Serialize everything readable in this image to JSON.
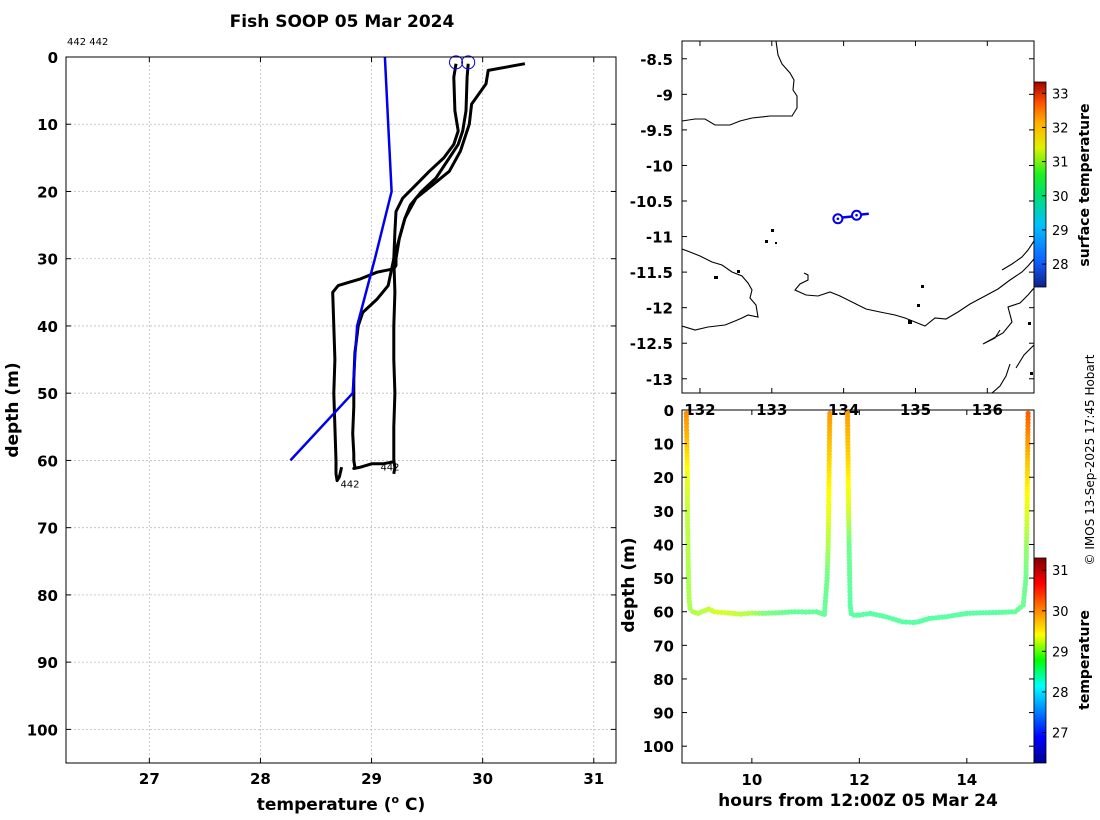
{
  "title": "Fish SOOP 05 Mar 2024",
  "credit": "© IMOS 13-Sep-2025 17:45 Hobart",
  "colors": {
    "profile": "#000000",
    "climatology": "#0000ee",
    "track": "#0000ee"
  },
  "chart_data": [
    {
      "type": "line",
      "name": "profile-panel",
      "xlabel": "temperature (o C)",
      "xlabel_main": "temperature (",
      "xlabel_sup": "o",
      "xlabel_end": " C)",
      "ylabel": "depth (m)",
      "xlim": [
        26.25,
        31.2
      ],
      "ylim": [
        0,
        105
      ],
      "y_reversed": true,
      "xticks": [
        27,
        28,
        29,
        30,
        31
      ],
      "yticks": [
        0,
        10,
        20,
        30,
        40,
        50,
        60,
        70,
        80,
        90,
        100
      ],
      "grid": true,
      "corner_label": "442 442",
      "annotations": [
        {
          "text": "442",
          "x": 28.72,
          "y": 64.0
        },
        {
          "text": "442",
          "x": 29.08,
          "y": 61.5
        }
      ],
      "surface_markers": [
        {
          "x": 29.76,
          "y": 0.8
        },
        {
          "x": 29.87,
          "y": 0.8
        }
      ],
      "series": [
        {
          "name": "profile-1",
          "color": "#000000",
          "x": [
            29.76,
            29.74,
            29.75,
            29.78,
            29.74,
            29.65,
            29.52,
            29.4,
            29.28,
            29.22,
            29.21,
            29.2,
            29.21,
            29.2,
            29.2,
            29.21,
            29.2,
            29.2,
            29.2,
            29.21,
            29.2
          ],
          "y": [
            1,
            3,
            8,
            11,
            13,
            15,
            17,
            19,
            21,
            23,
            26,
            30,
            35,
            40,
            45,
            50,
            55,
            59,
            60,
            61,
            62
          ]
        },
        {
          "name": "profile-2",
          "color": "#000000",
          "x": [
            29.87,
            29.86,
            29.85,
            29.82,
            29.78,
            29.7,
            29.58,
            29.45,
            29.35,
            29.3,
            29.25,
            29.2,
            29.15,
            29.05,
            28.92,
            28.88,
            28.85,
            28.84,
            28.84,
            28.83,
            28.84,
            28.84,
            28.85,
            28.84,
            28.9,
            29.0,
            29.1,
            29.2
          ],
          "y": [
            1,
            3,
            8,
            11,
            13,
            15,
            18,
            20,
            22,
            24,
            27,
            30,
            34,
            36,
            38,
            40,
            44,
            48,
            52,
            56,
            59,
            60,
            61,
            61.2,
            61,
            60.5,
            60.5,
            60.2
          ]
        },
        {
          "name": "profile-3",
          "color": "#000000",
          "x": [
            30.38,
            30.05,
            30.03,
            29.9,
            29.88,
            29.8,
            29.7,
            29.55,
            29.4,
            29.3,
            29.25,
            29.22,
            29.22,
            29.2,
            29.05,
            28.9,
            28.8,
            28.7,
            28.65,
            28.66,
            28.67,
            28.66,
            28.67,
            28.68,
            28.68,
            28.69,
            28.71,
            28.73
          ],
          "y": [
            1,
            2,
            4,
            7,
            10,
            14,
            17,
            19,
            21,
            24,
            27,
            30,
            31,
            31.5,
            32,
            33,
            33.5,
            34,
            35,
            40,
            45,
            50,
            55,
            60,
            62,
            63,
            62.5,
            61
          ]
        },
        {
          "name": "climatology",
          "color": "#0000ee",
          "x": [
            29.12,
            29.15,
            29.18,
            29.03,
            28.87,
            28.85,
            28.83,
            28.27
          ],
          "y": [
            0,
            10,
            20,
            30,
            40,
            45,
            50,
            60
          ]
        }
      ]
    },
    {
      "type": "line",
      "name": "map-panel",
      "xlim": [
        131.75,
        136.65
      ],
      "ylim": [
        -13.2,
        -8.25
      ],
      "xticks": [
        132,
        133,
        134,
        135,
        136
      ],
      "xtick_labels": [
        "132",
        "133",
        "134",
        "135",
        "136"
      ],
      "yticks": [
        -8.5,
        -9,
        -9.5,
        -10,
        -10.5,
        -11,
        -11.5,
        -12,
        -12.5,
        -13
      ],
      "ytick_labels": [
        "-8.5",
        "-9",
        "-9.5",
        "-10",
        "-10.5",
        "-11",
        "-11.5",
        "-12",
        "-12.5",
        "-13"
      ],
      "track": {
        "lon": [
          133.92,
          134.0,
          134.1,
          134.18,
          134.25,
          134.35
        ],
        "lat": [
          -10.75,
          -10.73,
          -10.72,
          -10.7,
          -10.69,
          -10.68
        ]
      },
      "drop_markers": [
        {
          "lon": 133.92,
          "lat": -10.75
        },
        {
          "lon": 134.18,
          "lat": -10.7
        }
      ],
      "colorbar": {
        "label": "surface temperature",
        "range": [
          27.33,
          33.33
        ],
        "ticks": [
          28,
          29,
          30,
          31,
          32,
          33
        ],
        "tick_labels": [
          "28",
          "29",
          "30",
          "31",
          "32",
          "33"
        ]
      }
    },
    {
      "type": "scatter",
      "name": "time-depth-panel",
      "xlabel": "hours from 12:00Z 05 Mar 24",
      "ylabel": "depth (m)",
      "xlim": [
        8.7,
        15.25
      ],
      "ylim": [
        0,
        105
      ],
      "y_reversed": true,
      "xticks": [
        10,
        12,
        14
      ],
      "yticks": [
        0,
        10,
        20,
        30,
        40,
        50,
        60,
        70,
        80,
        90,
        100
      ],
      "colorbar": {
        "label": "temperature",
        "range": [
          26.25,
          31.3
        ],
        "ticks": [
          27,
          28,
          29,
          30,
          31
        ],
        "tick_labels": [
          "27",
          "28",
          "29",
          "30",
          "31"
        ]
      },
      "series": [
        {
          "name": "cast-1",
          "t": [
            8.78,
            8.79,
            8.8,
            8.8,
            8.81,
            8.82,
            8.83,
            8.85,
            8.9,
            9.0,
            9.1,
            9.2,
            9.3,
            9.5,
            9.8,
            10.0,
            10.2,
            10.5,
            10.8,
            11.0,
            11.2,
            11.35,
            11.4,
            11.42,
            11.43,
            11.44,
            11.45
          ],
          "depth": [
            1,
            10,
            20,
            30,
            40,
            50,
            56,
            59,
            60,
            60.5,
            59.8,
            59.2,
            60,
            60.3,
            60.7,
            60.4,
            60.5,
            60.3,
            60,
            60.1,
            60,
            60.8,
            50,
            40,
            30,
            15,
            1
          ],
          "temp": [
            29.95,
            29.7,
            29.3,
            29.1,
            29.05,
            29.0,
            29.0,
            29.0,
            29.0,
            29.05,
            29.05,
            29.1,
            29.2,
            29.2,
            29.1,
            29.0,
            28.8,
            28.7,
            28.65,
            28.65,
            28.65,
            28.65,
            28.7,
            29.0,
            29.3,
            29.6,
            29.9
          ]
        },
        {
          "name": "cast-2",
          "t": [
            11.78,
            11.79,
            11.8,
            11.81,
            11.82,
            11.83,
            11.85,
            11.9,
            12.0,
            12.2,
            12.5,
            12.8,
            13.0,
            13.1,
            13.3,
            13.6,
            14.0,
            14.3,
            14.6,
            14.9,
            15.05,
            15.1,
            15.11,
            15.12,
            15.13,
            15.14
          ],
          "depth": [
            1,
            15,
            30,
            40,
            50,
            58,
            60.6,
            61,
            61,
            60.5,
            61.5,
            63,
            63.2,
            63,
            62,
            61.5,
            60.5,
            60.3,
            60.2,
            60,
            58,
            50,
            40,
            32,
            15,
            1
          ],
          "temp": [
            29.9,
            29.6,
            29.2,
            28.7,
            28.65,
            28.6,
            28.6,
            28.6,
            28.6,
            28.6,
            28.6,
            28.6,
            28.6,
            28.6,
            28.6,
            28.6,
            28.6,
            28.6,
            28.6,
            28.65,
            28.7,
            28.7,
            28.9,
            29.2,
            29.7,
            30.2
          ]
        }
      ]
    }
  ]
}
